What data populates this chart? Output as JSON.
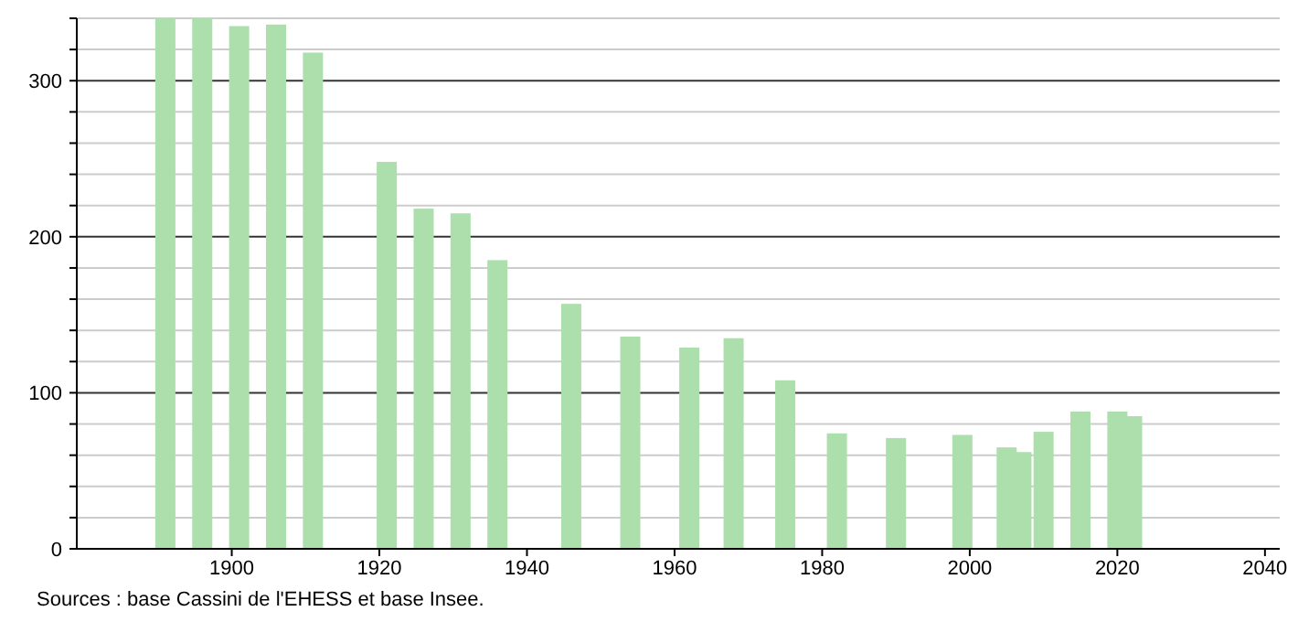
{
  "chart_data": {
    "type": "bar",
    "x": [
      1891,
      1896,
      1901,
      1906,
      1911,
      1921,
      1926,
      1931,
      1936,
      1946,
      1954,
      1962,
      1968,
      1975,
      1982,
      1990,
      1999,
      2005,
      2007,
      2010,
      2015,
      2020,
      2022
    ],
    "values": [
      340,
      340,
      335,
      336,
      318,
      248,
      218,
      215,
      185,
      157,
      136,
      129,
      135,
      108,
      74,
      71,
      73,
      65,
      62,
      75,
      88,
      88,
      85
    ],
    "color": "#addfad",
    "xlim": [
      1879,
      2042
    ],
    "xticks": [
      1900,
      1920,
      1940,
      1960,
      1980,
      2000,
      2020,
      2040
    ],
    "ylim": [
      0,
      340
    ],
    "yticks": [
      0,
      {
        "value": 20,
        "label": null
      },
      {
        "value": 40,
        "label": null
      },
      {
        "value": 60,
        "label": null
      },
      {
        "value": 80,
        "label": null
      },
      100,
      {
        "value": 120,
        "label": null
      },
      {
        "value": 140,
        "label": null
      },
      {
        "value": 160,
        "label": null
      },
      {
        "value": 180,
        "label": null
      },
      200,
      {
        "value": 220,
        "label": null
      },
      {
        "value": 240,
        "label": null
      },
      {
        "value": 260,
        "label": null
      },
      {
        "value": 280,
        "label": null
      },
      300,
      {
        "value": 320,
        "label": null
      },
      {
        "value": 340,
        "label": null
      }
    ],
    "grid": "y",
    "annotations": [
      "Sources : base Cassini de l'EHESS et base Insee."
    ]
  }
}
